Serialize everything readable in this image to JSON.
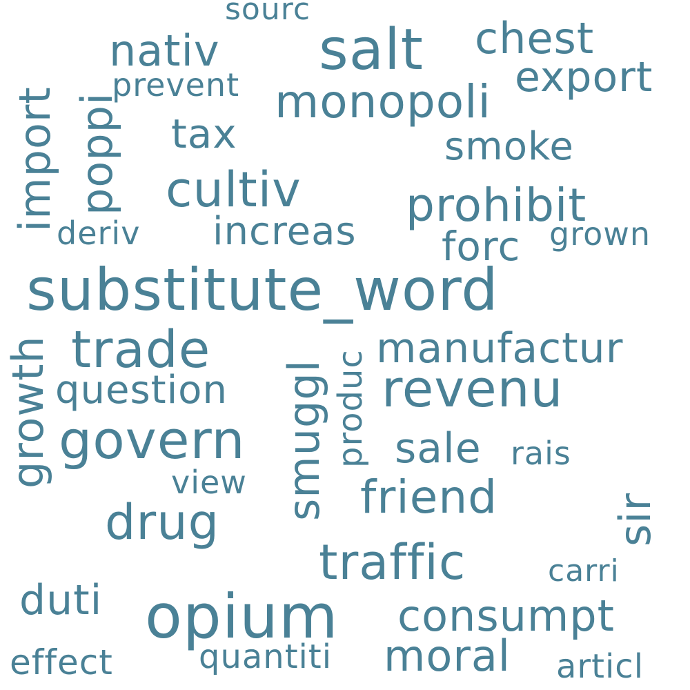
{
  "theme": {
    "word_color": "#4a8196",
    "background": "#ffffff"
  },
  "words": {
    "substitute_word": "substitute_word",
    "opium": "opium",
    "salt": "salt",
    "revenu": "revenu",
    "govern": "govern",
    "trade": "trade",
    "cultiv": "cultiv",
    "traffic": "traffic",
    "drug": "drug",
    "monopoli": "monopoli",
    "prohibit": "prohibit",
    "nativ": "nativ",
    "chest": "chest",
    "export": "export",
    "friend": "friend",
    "manufactur": "manufactur",
    "consumpt": "consumpt",
    "moral": "moral",
    "question": "question",
    "increas": "increas",
    "smoke": "smoke",
    "tax": "tax",
    "forc": "forc",
    "sale": "sale",
    "import": "import",
    "poppi": "poppi",
    "growth": "growth",
    "smuggl": "smuggl",
    "duti": "duti",
    "quantiti": "quantiti",
    "effect": "effect",
    "articl": "articl",
    "sir": "sir",
    "produc": "produc",
    "prevent": "prevent",
    "sourc": "sourc",
    "deriv": "deriv",
    "grown": "grown",
    "rais": "rais",
    "view": "view",
    "carri": "carri"
  }
}
